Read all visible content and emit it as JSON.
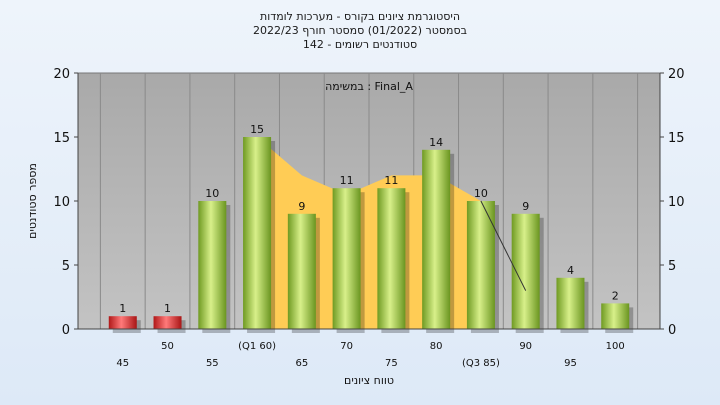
{
  "title_lines": [
    "היסטוגרמת ציונים בקורס - מערכות לומדות",
    "בסמסטר  (01/2022)  סמסטר חורף 2022/23",
    "סטודנטים רשומים - 142"
  ],
  "chart_data": {
    "type": "bar",
    "title": "היסטוגרמת ציונים בקורס - מערכות לומדות",
    "annotation": "במשימה : Final_A",
    "xlabel": "טווח ציונים",
    "ylabel": "מספר סטודנטים",
    "ylim": [
      0,
      20
    ],
    "yticks": [
      0,
      5,
      10,
      15,
      20
    ],
    "grid": "vertical",
    "categories": [
      "45",
      "50",
      "55",
      "(Q1 60)",
      "65",
      "70",
      "75",
      "80",
      "(Q3 85)",
      "90",
      "95",
      "100"
    ],
    "values": [
      1,
      1,
      10,
      15,
      9,
      11,
      11,
      14,
      10,
      9,
      4,
      2
    ],
    "bar_colors": [
      "#d42a2a",
      "#d42a2a",
      "#8fbc3a",
      "#8fbc3a",
      "#8fbc3a",
      "#8fbc3a",
      "#8fbc3a",
      "#8fbc3a",
      "#8fbc3a",
      "#8fbc3a",
      "#8fbc3a",
      "#8fbc3a"
    ],
    "area_series": {
      "x": [
        60,
        65,
        70,
        75,
        80,
        85
      ],
      "values": [
        15,
        12,
        10.5,
        12,
        12,
        10
      ],
      "color": "#ffcc55"
    },
    "line_series": {
      "x": [
        85,
        90
      ],
      "values": [
        10,
        3
      ],
      "color": "#333333"
    },
    "plot_background": "#b5b5b5",
    "page_background": "#e6eef8"
  }
}
